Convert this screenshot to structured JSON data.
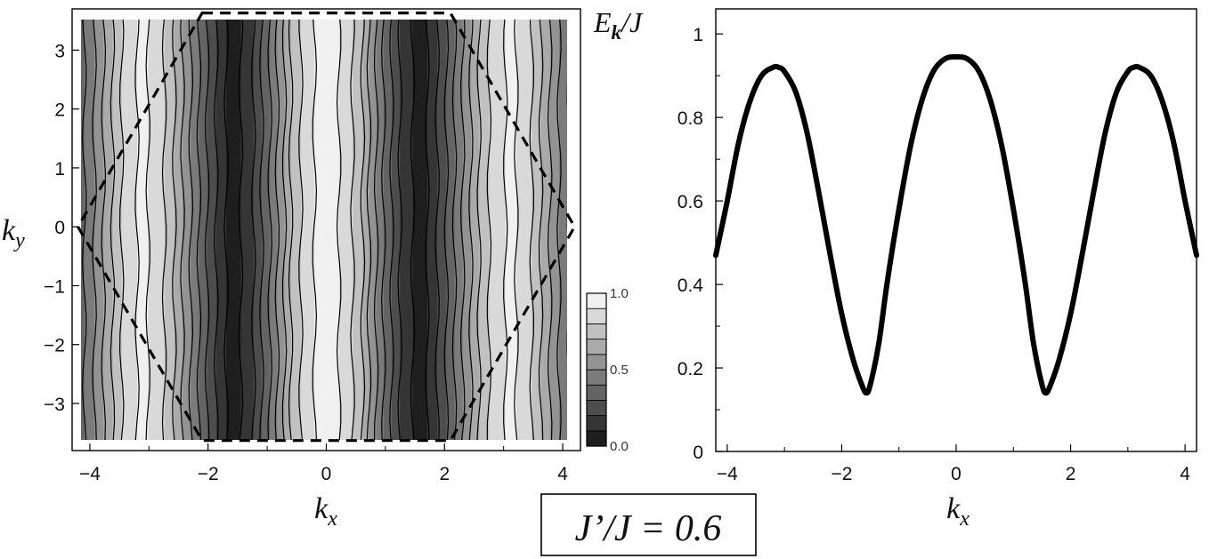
{
  "chart_data": [
    {
      "type": "heatmap",
      "xlabel": "k",
      "xlabel_sub": "x",
      "ylabel": "k",
      "ylabel_sub": "y",
      "xlim": [
        -4.3,
        4.3
      ],
      "ylim": [
        -3.8,
        3.7
      ],
      "x_ticks": [
        -4,
        -2,
        0,
        2,
        4
      ],
      "y_ticks": [
        3,
        2,
        1,
        0,
        -1,
        -2,
        -3
      ],
      "data_extent": {
        "x": [
          -4.2,
          4.2
        ],
        "y": [
          -3.63,
          3.63
        ]
      },
      "colorbar": {
        "ticks": [
          {
            "value": 1.0,
            "label": "1.0"
          },
          {
            "value": 0.5,
            "label": "0.5"
          },
          {
            "value": 0.0,
            "label": "0.0"
          }
        ],
        "levels": 10,
        "range": [
          0,
          1
        ]
      },
      "contour_profile": {
        "description_in_data_units": "value of the filled contour field along kx (nearly constant in ky)",
        "kx": [
          0,
          0.3,
          0.6,
          0.9,
          1.2,
          1.4,
          1.57,
          1.75,
          2.0,
          2.3,
          2.6,
          2.9,
          3.14,
          3.4,
          3.7,
          4.0,
          4.2
        ],
        "value": [
          0.95,
          0.88,
          0.7,
          0.45,
          0.22,
          0.12,
          0.05,
          0.12,
          0.28,
          0.5,
          0.72,
          0.88,
          0.92,
          0.85,
          0.65,
          0.45,
          0.35
        ]
      },
      "brillouin_zone_dashed": [
        [
          -2.1,
          3.63
        ],
        [
          2.1,
          3.63
        ],
        [
          4.2,
          0
        ],
        [
          2.1,
          -3.63
        ],
        [
          -2.1,
          -3.63
        ],
        [
          -4.2,
          0
        ]
      ],
      "tick_labels_x": [
        "−4",
        "−2",
        "0",
        "2",
        "4"
      ],
      "tick_labels_y": [
        "3",
        "2",
        "1",
        "0",
        "−1",
        "−2",
        "−3"
      ]
    },
    {
      "type": "line",
      "xlabel": "k",
      "xlabel_sub": "x",
      "ylabel": "E",
      "ylabel_sub": "k",
      "ylabel_suffix": "/J",
      "xlim": [
        -4.2,
        4.2
      ],
      "ylim": [
        0,
        1.06
      ],
      "x_ticks": [
        -4,
        -2,
        0,
        2,
        4
      ],
      "y_ticks": [
        0,
        0.2,
        0.4,
        0.6,
        0.8,
        1
      ],
      "tick_labels_x": [
        "−4",
        "−2",
        "0",
        "2",
        "4"
      ],
      "tick_labels_y": [
        "0",
        "0.2",
        "0.4",
        "0.6",
        "0.8",
        "1"
      ],
      "series": [
        {
          "x": [
            -4.2,
            -4.0,
            -3.8,
            -3.6,
            -3.4,
            -3.2,
            -3.1,
            -3.0,
            -2.8,
            -2.6,
            -2.4,
            -2.2,
            -2.0,
            -1.8,
            -1.65,
            -1.57,
            -1.5,
            -1.35,
            -1.2,
            -1.0,
            -0.8,
            -0.6,
            -0.4,
            -0.2,
            0.0,
            0.2,
            0.4,
            0.6,
            0.8,
            1.0,
            1.2,
            1.35,
            1.5,
            1.57,
            1.65,
            1.8,
            2.0,
            2.2,
            2.4,
            2.6,
            2.8,
            3.0,
            3.1,
            3.2,
            3.4,
            3.6,
            3.8,
            4.0,
            4.2
          ],
          "y": [
            0.47,
            0.6,
            0.74,
            0.84,
            0.9,
            0.92,
            0.92,
            0.91,
            0.86,
            0.76,
            0.62,
            0.47,
            0.33,
            0.22,
            0.16,
            0.14,
            0.16,
            0.26,
            0.41,
            0.58,
            0.73,
            0.84,
            0.91,
            0.94,
            0.945,
            0.94,
            0.91,
            0.84,
            0.73,
            0.58,
            0.41,
            0.26,
            0.16,
            0.14,
            0.16,
            0.22,
            0.33,
            0.47,
            0.62,
            0.76,
            0.86,
            0.91,
            0.92,
            0.92,
            0.9,
            0.84,
            0.74,
            0.6,
            0.47
          ]
        }
      ]
    }
  ],
  "caption": "J’/J = 0.6"
}
